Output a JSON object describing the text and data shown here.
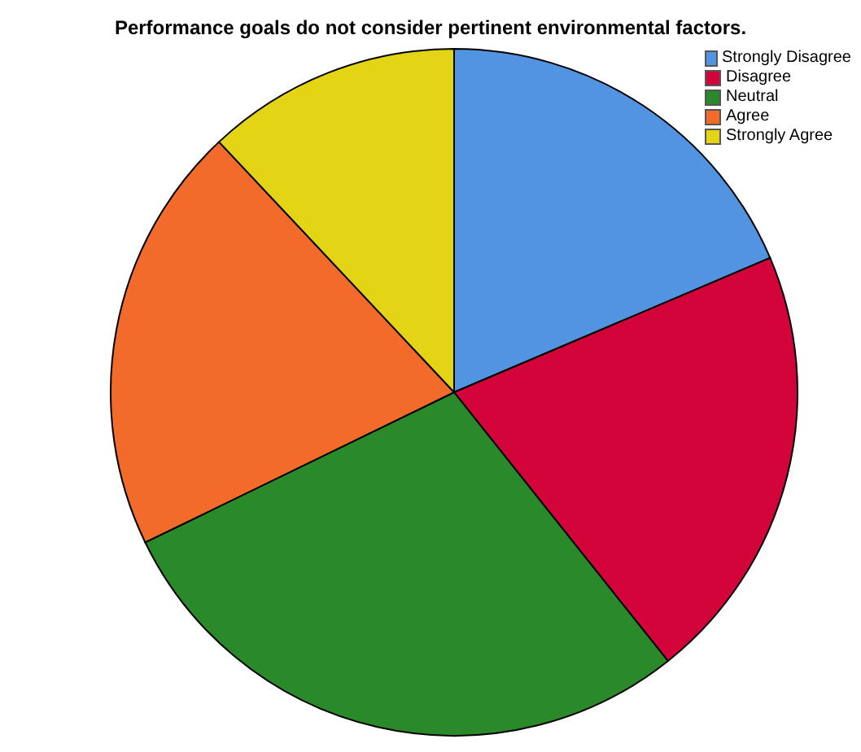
{
  "chart_data": {
    "type": "pie",
    "title": "Performance goals do not consider pertinent environmental factors.",
    "categories": [
      "Strongly Disagree",
      "Disagree",
      "Neutral",
      "Agree",
      "Strongly Agree"
    ],
    "values": [
      18.6,
      20.7,
      28.5,
      20.2,
      12.0
    ],
    "colors": [
      "#5294e2",
      "#d2043a",
      "#2a8a2a",
      "#f26b2a",
      "#e3d415"
    ],
    "legend": "top right"
  }
}
